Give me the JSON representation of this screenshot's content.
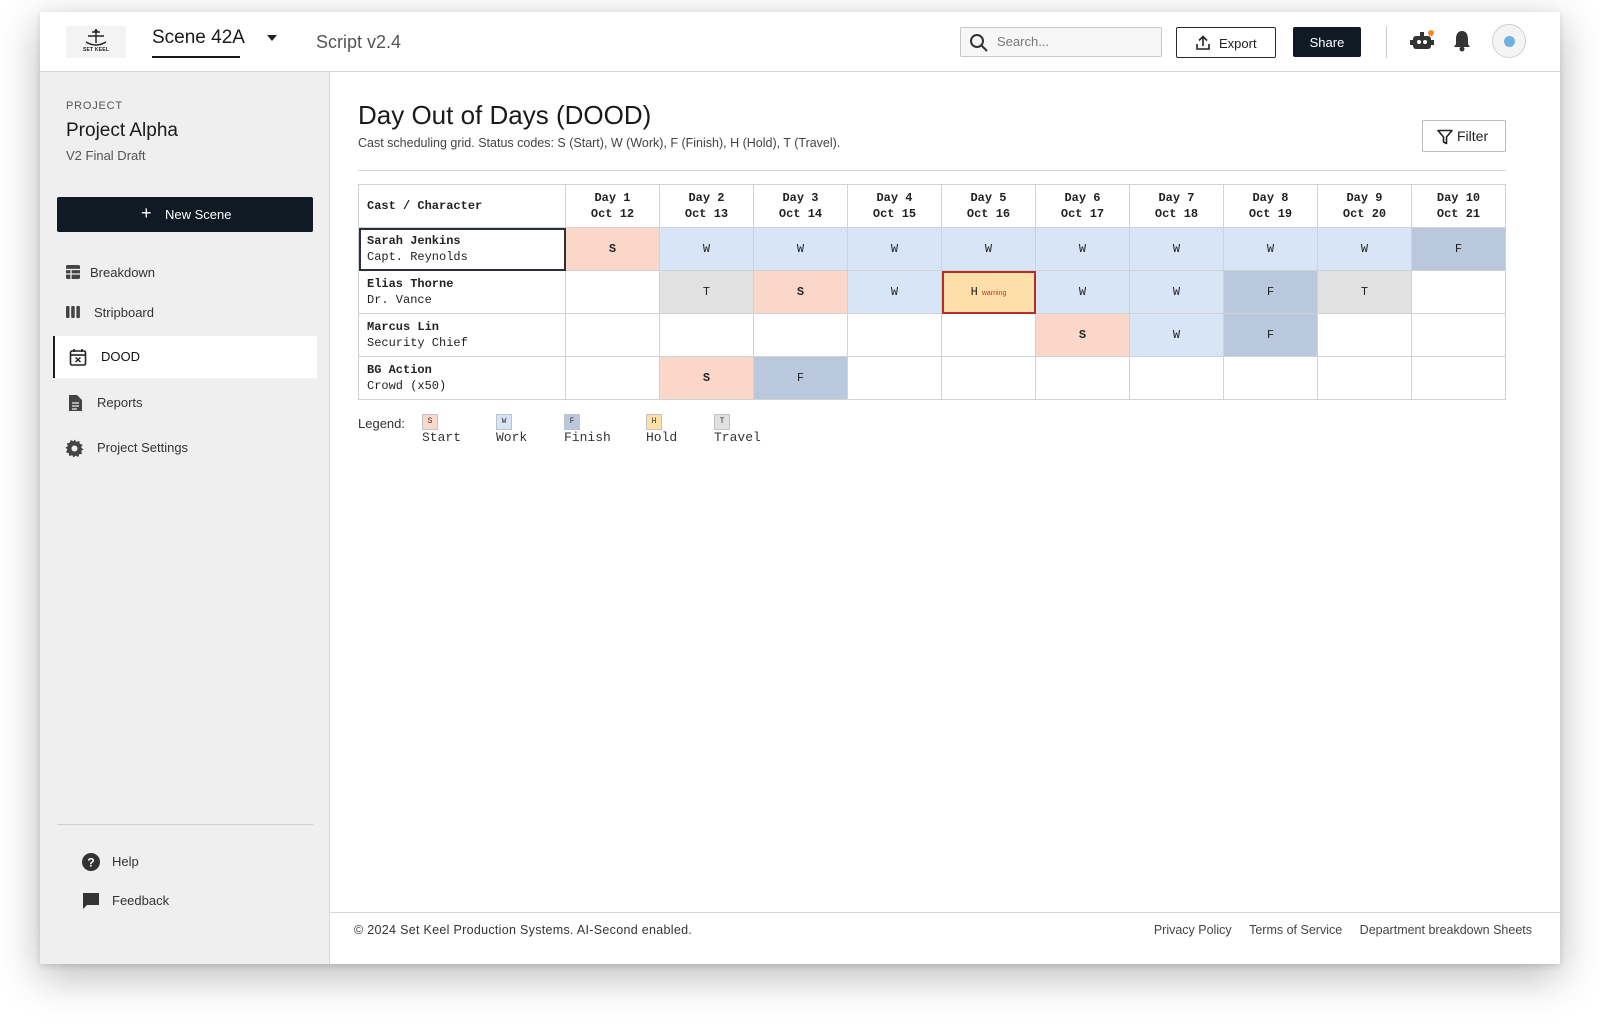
{
  "topbar": {
    "logo_text": "SET KEEL",
    "scene": "Scene 42A",
    "script_version": "Script v2.4",
    "search_placeholder": "Search...",
    "export_label": "Export",
    "share_label": "Share"
  },
  "sidebar": {
    "project_label": "PROJECT",
    "project_name": "Project Alpha",
    "project_draft": "V2 Final Draft",
    "new_scene_label": "New Scene",
    "nav": [
      {
        "label": "Breakdown",
        "icon": "table-icon"
      },
      {
        "label": "Stripboard",
        "icon": "columns-icon"
      },
      {
        "label": "DOOD",
        "icon": "calendar-icon",
        "active": true
      },
      {
        "label": "Reports",
        "icon": "document-icon"
      },
      {
        "label": "Project Settings",
        "icon": "gear-icon"
      }
    ],
    "help_label": "Help",
    "feedback_label": "Feedback"
  },
  "main": {
    "title": "Day Out of Days (DOOD)",
    "subtitle": "Cast scheduling grid. Status codes: S (Start), W (Work), F (Finish), H (Hold), T (Travel).",
    "filter_label": "Filter",
    "table": {
      "cast_header": "Cast / Character",
      "days": [
        {
          "day": "Day 1",
          "date": "Oct 12"
        },
        {
          "day": "Day 2",
          "date": "Oct 13"
        },
        {
          "day": "Day 3",
          "date": "Oct 14"
        },
        {
          "day": "Day 4",
          "date": "Oct 15"
        },
        {
          "day": "Day 5",
          "date": "Oct 16"
        },
        {
          "day": "Day 6",
          "date": "Oct 17"
        },
        {
          "day": "Day 7",
          "date": "Oct 18"
        },
        {
          "day": "Day 8",
          "date": "Oct 19"
        },
        {
          "day": "Day 9",
          "date": "Oct 20"
        },
        {
          "day": "Day 10",
          "date": "Oct 21"
        }
      ],
      "rows": [
        {
          "name": "Sarah Jenkins",
          "role": "Capt. Reynolds",
          "cells": [
            "S",
            "W",
            "W",
            "W",
            "W",
            "W",
            "W",
            "W",
            "W",
            "F"
          ]
        },
        {
          "name": "Elias Thorne",
          "role": "Dr. Vance",
          "cells": [
            "",
            "T",
            "S",
            "W",
            "H",
            "W",
            "W",
            "F",
            "T",
            ""
          ]
        },
        {
          "name": "Marcus Lin",
          "role": "Security Chief",
          "cells": [
            "",
            "",
            "",
            "",
            "",
            "S",
            "W",
            "F",
            "",
            ""
          ]
        },
        {
          "name": "BG Action",
          "role": "Crowd (x50)",
          "cells": [
            "",
            "S",
            "F",
            "",
            "",
            "",
            "",
            "",
            "",
            ""
          ]
        }
      ],
      "warning_text": "warning"
    },
    "legend_title": "Legend:",
    "legend": [
      {
        "code": "S",
        "label": "Start"
      },
      {
        "code": "W",
        "label": "Work"
      },
      {
        "code": "F",
        "label": "Finish"
      },
      {
        "code": "H",
        "label": "Hold"
      },
      {
        "code": "T",
        "label": "Travel"
      }
    ]
  },
  "footer": {
    "copyright": "© 2024 Set Keel Production Systems. AI-Second enabled.",
    "links": [
      "Privacy Policy",
      "Terms of Service",
      "Department breakdown Sheets"
    ]
  },
  "colors": {
    "start": "#fad7c8",
    "work": "#d7e5f7",
    "finish": "#b9c8dc",
    "hold": "#fce0a8",
    "travel": "#e1e1e1",
    "warning_border": "#b52c2a",
    "primary_dark": "#0f1a24"
  }
}
